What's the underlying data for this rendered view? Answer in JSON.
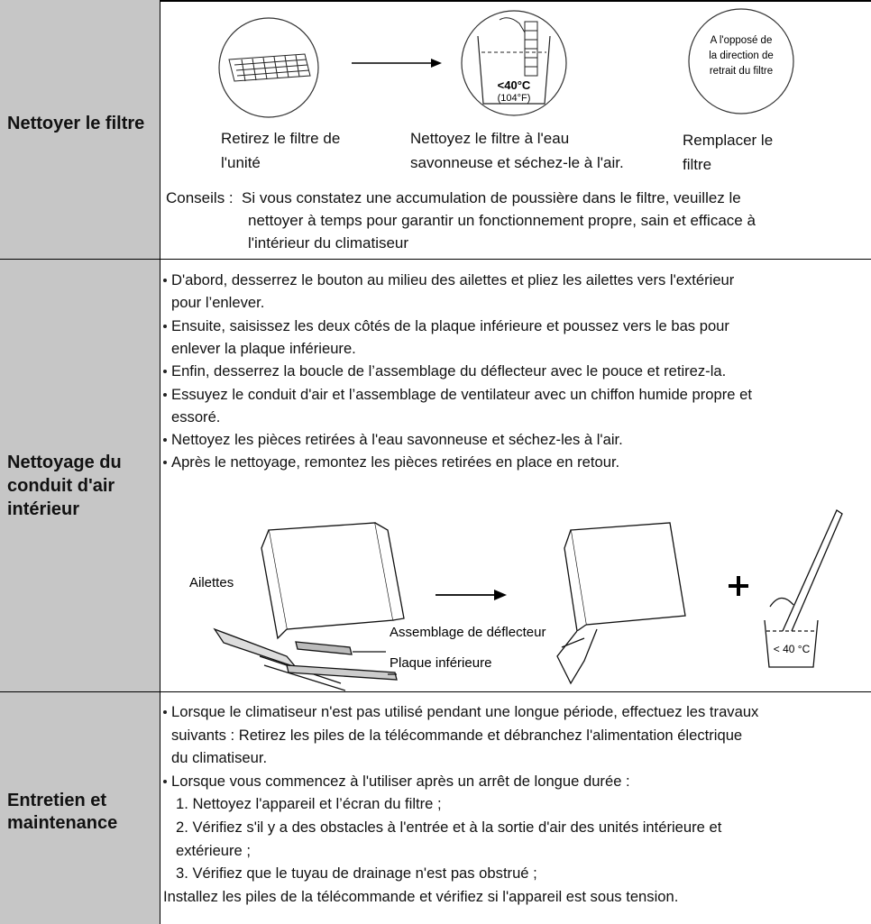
{
  "rows": [
    {
      "heading": "Nettoyer le filtre",
      "steps": [
        {
          "caption": [
            "Retirez le filtre de",
            "l'unité"
          ]
        },
        {
          "caption": [
            "Nettoyez le filtre à l'eau",
            "savonneuse et séchez-le à l'air."
          ],
          "temperature": "<40°C",
          "temperature_f": "(104°F)"
        },
        {
          "caption": [
            "Remplacer le",
            "filtre"
          ],
          "note": [
            "A l'opposé de",
            "la direction de",
            "retrait du filtre"
          ]
        }
      ],
      "tip_label": "Conseils :",
      "tip": [
        "Si vous constatez une accumulation de poussière dans le filtre, veuillez le",
        "nettoyer à temps pour garantir un fonctionnement propre, sain et efficace à",
        "l'intérieur du climatiseur"
      ]
    },
    {
      "heading": "Nettoyage du conduit d'air intérieur",
      "bullets": [
        {
          "lines": [
            "D'abord, desserrez le bouton au milieu des ailettes et pliez les ailettes vers l'extérieur",
            "pour l’enlever."
          ]
        },
        {
          "lines": [
            "Ensuite, saisissez les deux côtés de la plaque inférieure et poussez vers le bas pour",
            "enlever la plaque inférieure."
          ]
        },
        {
          "lines": [
            "Enfin, desserrez la boucle de l’assemblage du déflecteur avec le pouce et retirez-la."
          ]
        },
        {
          "lines": [
            "Essuyez le conduit d'air et l’assemblage de ventilateur avec un chiffon humide propre et",
            "essoré."
          ]
        },
        {
          "lines": [
            "Nettoyez les pièces retirées à l'eau savonneuse et séchez-les à l'air."
          ]
        },
        {
          "lines": [
            "Après le nettoyage, remontez les pièces retirées en place en retour."
          ]
        }
      ],
      "figure": {
        "fins": "Ailettes",
        "deflector": "Assemblage de déflecteur",
        "bottom_plate": "Plaque inférieure",
        "temperature": "< 40 °C"
      }
    },
    {
      "heading": "Entretien et maintenance",
      "bullets": [
        {
          "lines": [
            "Lorsque le climatiseur n'est pas utilisé pendant une longue période, effectuez les travaux",
            "suivants : Retirez les piles de la télécommande et débranchez l'alimentation électrique",
            "du climatiseur."
          ]
        },
        {
          "lines": [
            "Lorsque vous commencez à l'utiliser après un arrêt de longue durée :"
          ],
          "items": [
            {
              "lines": [
                "1. Nettoyez l'appareil et l’écran du filtre ;"
              ]
            },
            {
              "lines": [
                "2. Vérifiez s'il y a des obstacles à l'entrée et à la sortie d'air des unités intérieure et",
                "extérieure ;"
              ]
            },
            {
              "lines": [
                "3. Vérifiez que le tuyau de drainage n'est pas obstrué ;"
              ]
            }
          ]
        }
      ],
      "closing": "Installez les piles de la télécommande et vérifiez si l'appareil est sous tension."
    }
  ]
}
